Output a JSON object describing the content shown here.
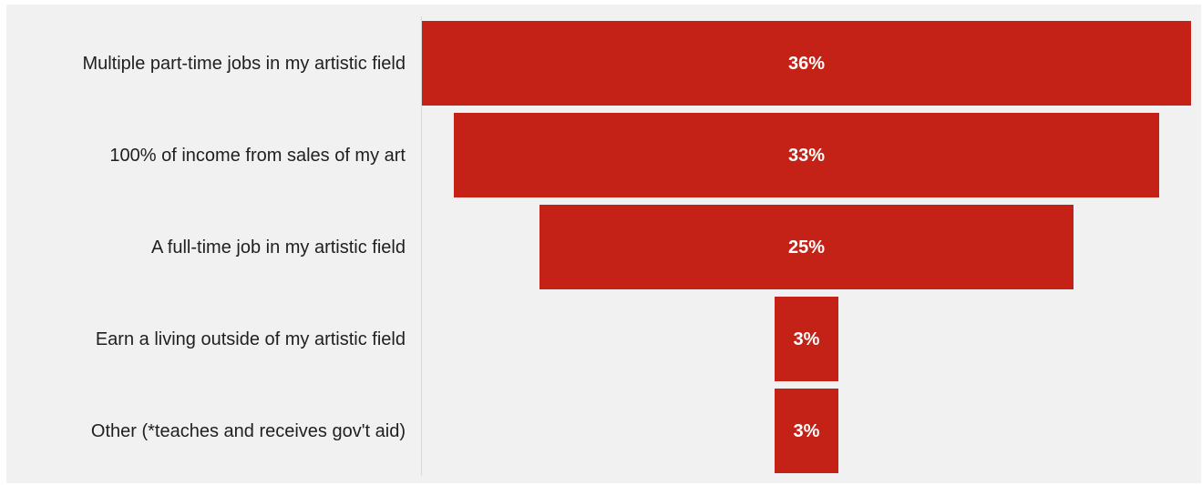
{
  "chart_data": {
    "type": "bar",
    "orientation": "horizontal",
    "style": "funnel-centered",
    "title": "",
    "xlabel": "",
    "ylabel": "",
    "categories": [
      "Multiple part-time jobs in my artistic field",
      "100% of income from sales of my art",
      "A full-time job in my artistic field",
      "Earn a living outside of my artistic field",
      "Other (*teaches and receives gov't aid)"
    ],
    "values": [
      36,
      33,
      25,
      3,
      3
    ],
    "value_labels": [
      "36%",
      "33%",
      "25%",
      "3%",
      "3%"
    ],
    "unit": "%",
    "xlim": [
      0,
      36
    ],
    "grid": false,
    "legend": "none",
    "colors": {
      "bar": "#c42216",
      "background": "#f1f1f1",
      "label_text": "#1f1f1f",
      "value_text": "#ffffff"
    }
  }
}
